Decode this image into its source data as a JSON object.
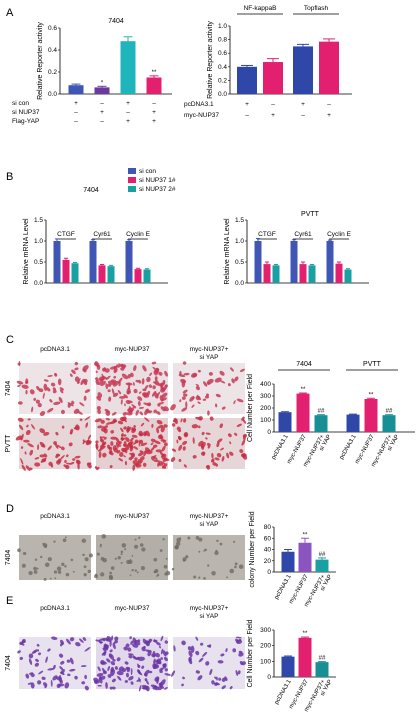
{
  "panel_letters": [
    "A",
    "B",
    "C",
    "D",
    "E"
  ],
  "colors": {
    "blue": "#3f56b4",
    "purple": "#6c3a9e",
    "cyan": "#1fb5bd",
    "pink": "#e2206f",
    "navy": "#2f47a8",
    "teal": "#1a9fa3",
    "deep_purple": "#8a55bf",
    "dark_teal": "#178f95"
  },
  "chart_data": [
    {
      "id": "A1",
      "type": "bar",
      "title": "7404",
      "ylabel": "Relative Reporter activity",
      "ylim": [
        0,
        0.6
      ],
      "yticks": [
        "0.0",
        "0.2",
        "0.4",
        "0.6"
      ],
      "values": [
        0.08,
        0.06,
        0.48,
        0.15
      ],
      "errors": [
        0.01,
        0.01,
        0.04,
        0.015
      ],
      "bar_colors": [
        "blue",
        "purple",
        "cyan",
        "pink"
      ],
      "annotations": [
        "",
        "*",
        "",
        "**"
      ],
      "condition_rows": [
        {
          "label": "si con",
          "marks": [
            "+",
            "–",
            "+",
            "–"
          ]
        },
        {
          "label": "si NUP37",
          "marks": [
            "–",
            "+",
            "–",
            "+"
          ]
        },
        {
          "label": "Flag-YAP",
          "marks": [
            "–",
            "–",
            "+",
            "+"
          ]
        }
      ]
    },
    {
      "id": "A2",
      "type": "bar",
      "ylabel": "Relative Reporter activity",
      "ylim": [
        0,
        1.0
      ],
      "yticks": [
        "0.0",
        "0.2",
        "0.4",
        "0.6",
        "0.8",
        "1.0"
      ],
      "groups": [
        "NF-kappaB",
        "Topflash"
      ],
      "values": [
        0.4,
        0.47,
        0.7,
        0.77
      ],
      "errors": [
        0.02,
        0.05,
        0.03,
        0.04
      ],
      "bar_colors": [
        "navy",
        "pink",
        "navy",
        "pink"
      ],
      "condition_rows": [
        {
          "label": "pcDNA3.1",
          "marks": [
            "+",
            "–",
            "+",
            "–"
          ]
        },
        {
          "label": "myc-NUP37",
          "marks": [
            "–",
            "+",
            "–",
            "+"
          ]
        }
      ]
    },
    {
      "id": "B1",
      "type": "bar",
      "title": "7404",
      "ylabel": "Relative mRNA Level",
      "ylim": [
        0,
        1.5
      ],
      "yticks": [
        "0.0",
        "0.5",
        "1.0",
        "1.5"
      ],
      "categories": [
        "CTGF",
        "Cyr61",
        "Cyclin E"
      ],
      "legend": [
        "si con",
        "si NUP37  1#",
        "si NUP37  2#"
      ],
      "legend_colors": [
        "blue",
        "pink",
        "teal"
      ],
      "series": [
        {
          "values": [
            1.0,
            1.0,
            1.0
          ],
          "errors": [
            0.05,
            0.03,
            0.03
          ]
        },
        {
          "values": [
            0.55,
            0.42,
            0.33
          ],
          "errors": [
            0.04,
            0.02,
            0.02
          ]
        },
        {
          "values": [
            0.47,
            0.4,
            0.32
          ],
          "errors": [
            0.02,
            0.02,
            0.02
          ]
        }
      ]
    },
    {
      "id": "B2",
      "type": "bar",
      "title": "PVTT",
      "ylabel": "Relative mRNA Level",
      "ylim": [
        0,
        1.5
      ],
      "yticks": [
        "0.0",
        "0.5",
        "1.0",
        "1.5"
      ],
      "categories": [
        "CTGF",
        "Cyr61",
        "Cyclin E"
      ],
      "series": [
        {
          "values": [
            1.0,
            1.0,
            1.0
          ],
          "errors": [
            0.06,
            0.03,
            0.02
          ]
        },
        {
          "values": [
            0.45,
            0.45,
            0.46
          ],
          "errors": [
            0.05,
            0.05,
            0.04
          ]
        },
        {
          "values": [
            0.42,
            0.42,
            0.32
          ],
          "errors": [
            0.02,
            0.02,
            0.02
          ]
        }
      ]
    },
    {
      "id": "C",
      "type": "bar",
      "ylabel": "Cell Number per Field",
      "ylim": [
        0,
        400
      ],
      "yticks": [
        "0",
        "100",
        "200",
        "300",
        "400"
      ],
      "groups": [
        "7404",
        "PVTT"
      ],
      "categories": [
        "pcDNA3.1",
        "myc-NUP37",
        "myc-NUP37+\nsi YAP",
        "pcDNA3.1",
        "myc-NUP37",
        "myc-NUP37+\nsi YAP"
      ],
      "values": [
        165,
        320,
        140,
        145,
        275,
        140
      ],
      "errors": [
        4,
        5,
        4,
        4,
        6,
        4
      ],
      "bar_colors": [
        "navy",
        "pink",
        "dark_teal",
        "navy",
        "pink",
        "dark_teal"
      ],
      "annotations": [
        "",
        "**",
        "##",
        "",
        "**",
        "##"
      ]
    },
    {
      "id": "D",
      "type": "bar",
      "ylabel": "colony Number per Field",
      "ylim": [
        0,
        80
      ],
      "yticks": [
        "0",
        "20",
        "40",
        "60",
        "80"
      ],
      "categories": [
        "pcDNA3.1",
        "myc-NUP37",
        "myc-NUP37+\nsi YAP"
      ],
      "values": [
        36,
        52,
        22
      ],
      "errors": [
        4,
        8,
        3
      ],
      "bar_colors": [
        "navy",
        "deep_purple",
        "teal"
      ],
      "annotations": [
        "",
        "**",
        "##"
      ]
    },
    {
      "id": "E",
      "type": "bar",
      "ylabel": "Cell Number per Field",
      "ylim": [
        0,
        300
      ],
      "yticks": [
        "0",
        "100",
        "200",
        "300"
      ],
      "categories": [
        "pcDNA3.1",
        "myc-NUP37",
        "myc-NUP37+\nsi YAP"
      ],
      "values": [
        130,
        250,
        95
      ],
      "errors": [
        4,
        5,
        3
      ],
      "bar_colors": [
        "navy",
        "pink",
        "dark_teal"
      ],
      "annotations": [
        "",
        "**",
        "##"
      ]
    }
  ],
  "micrographs": {
    "C": {
      "columns": [
        "pcDNA3.1",
        "myc-NUP37",
        "myc-NUP37+\nsi YAP"
      ],
      "rows": [
        "7404",
        "PVTT"
      ]
    },
    "D": {
      "columns": [
        "pcDNA3.1",
        "myc-NUP37",
        "myc-NUP37+\nsi YAP"
      ],
      "rows": [
        "7404"
      ]
    },
    "E": {
      "columns": [
        "pcDNA3.1",
        "myc-NUP37",
        "myc-NUP37+\nsi YAP"
      ],
      "rows": [
        "7404"
      ]
    }
  }
}
